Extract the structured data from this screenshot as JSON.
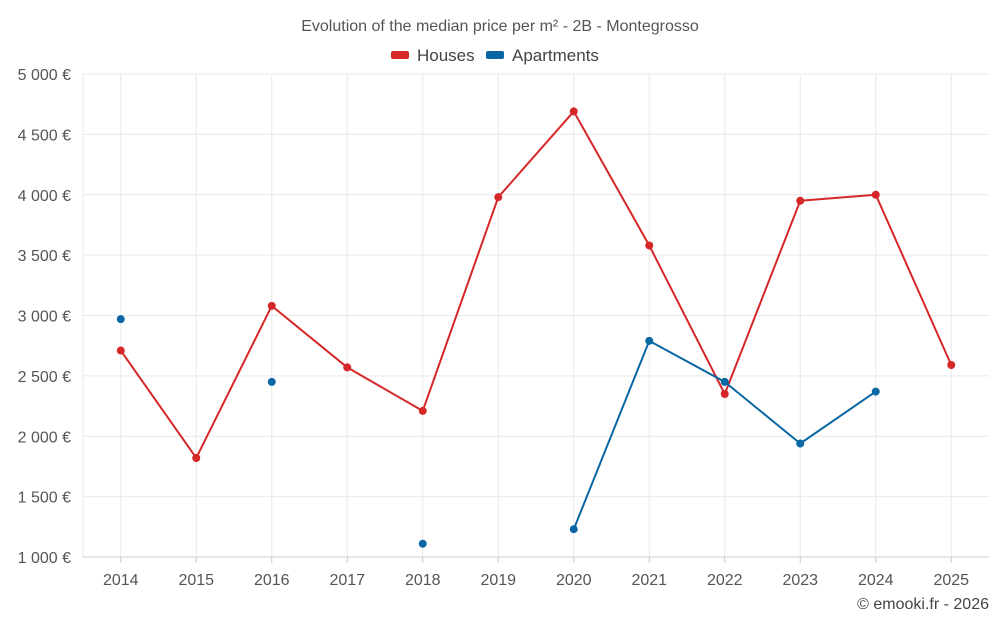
{
  "chart_data": {
    "type": "line",
    "title": "Evolution of the median price per m² - 2B - Montegrosso",
    "xlabel": "",
    "ylabel": "",
    "categories": [
      "2014",
      "2015",
      "2016",
      "2017",
      "2018",
      "2019",
      "2020",
      "2021",
      "2022",
      "2023",
      "2024",
      "2025"
    ],
    "y_ticks": [
      1000,
      1500,
      2000,
      2500,
      3000,
      3500,
      4000,
      4500,
      5000
    ],
    "y_tick_labels": [
      "1 000 €",
      "1 500 €",
      "2 000 €",
      "2 500 €",
      "3 000 €",
      "3 500 €",
      "4 000 €",
      "4 500 €",
      "5 000 €"
    ],
    "ylim": [
      1000,
      5000
    ],
    "grid": true,
    "legend_position": "top-center",
    "series": [
      {
        "name": "Houses",
        "color": "#d62728",
        "values": [
          2710,
          1820,
          3080,
          2570,
          2210,
          3980,
          4690,
          3580,
          2350,
          3950,
          4000,
          2590
        ]
      },
      {
        "name": "Apartments",
        "color": "#0a67a3",
        "values": [
          2970,
          null,
          2450,
          null,
          1110,
          null,
          1230,
          2790,
          2450,
          1940,
          2370,
          null
        ]
      }
    ],
    "credit": "© emooki.fr - 2026"
  }
}
